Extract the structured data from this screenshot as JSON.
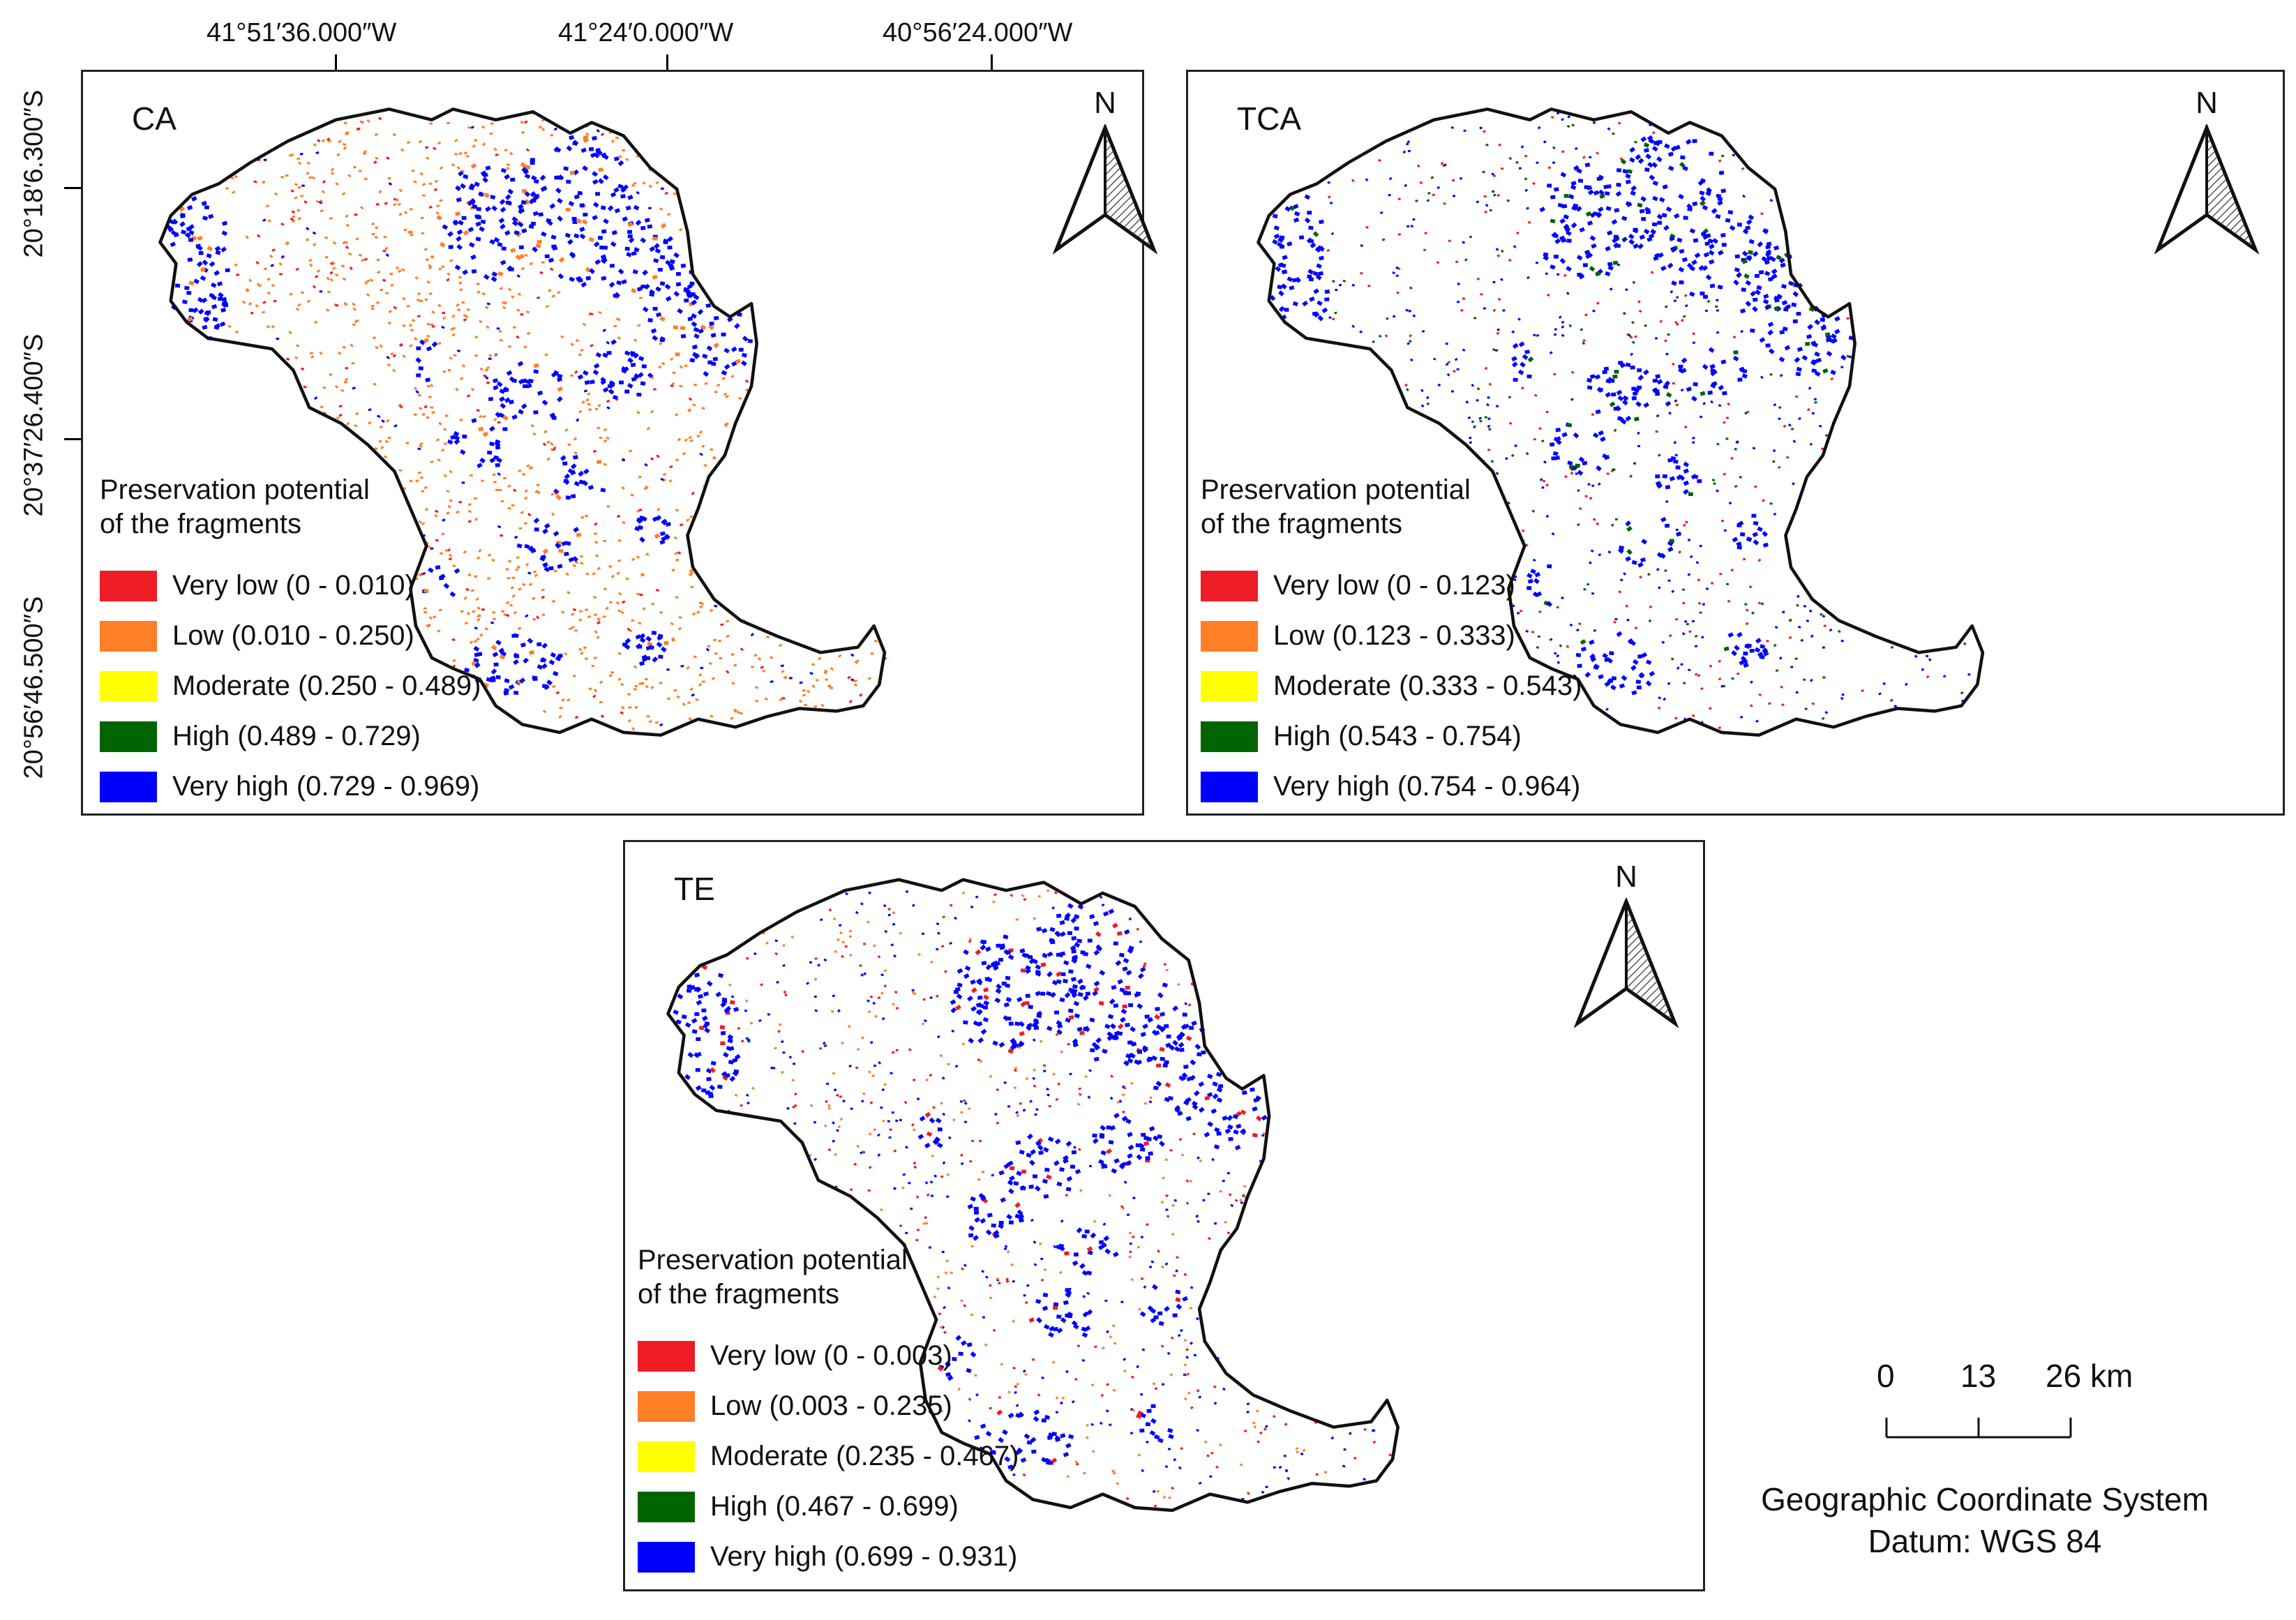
{
  "axes": {
    "longitude_labels": [
      "41°51′36.000″W",
      "41°24′0.000″W",
      "40°56′24.000″W"
    ],
    "latitude_labels": [
      "20°18′6.300″S",
      "20°37′26.400″S",
      "20°56′46.500″S"
    ]
  },
  "north_arrow_label": "N",
  "legend_title_lines": [
    "Preservation potential",
    "of the fragments"
  ],
  "class_colors": {
    "very_low": "#ee1c24",
    "low": "#ff7f27",
    "moderate": "#ffff00",
    "high": "#006400",
    "very_high": "#0000ff"
  },
  "panels": [
    {
      "label": "CA",
      "legend": [
        {
          "name": "Very low",
          "range": "(0 - 0.010)",
          "text": "Very low (0 - 0.010)"
        },
        {
          "name": "Low",
          "range": "(0.010 - 0.250)",
          "text": "Low (0.010 - 0.250)"
        },
        {
          "name": "Moderate",
          "range": "(0.250 - 0.489)",
          "text": "Moderate (0.250 - 0.489)"
        },
        {
          "name": "High",
          "range": "(0.489 - 0.729)",
          "text": "High (0.489 - 0.729)"
        },
        {
          "name": "Very high",
          "range": "(0.729 - 0.969)",
          "text": "Very high (0.729 - 0.969)"
        }
      ]
    },
    {
      "label": "TCA",
      "legend": [
        {
          "name": "Very low",
          "range": "(0 - 0.123)",
          "text": "Very low (0 - 0.123)"
        },
        {
          "name": "Low",
          "range": "(0.123 - 0.333)",
          "text": "Low (0.123 - 0.333)"
        },
        {
          "name": "Moderate",
          "range": "(0.333 - 0.543)",
          "text": "Moderate (0.333 - 0.543)"
        },
        {
          "name": "High",
          "range": "(0.543 - 0.754)",
          "text": "High (0.543 - 0.754)"
        },
        {
          "name": "Very high",
          "range": "(0.754 - 0.964)",
          "text": "Very high (0.754 - 0.964)"
        }
      ]
    },
    {
      "label": "TE",
      "legend": [
        {
          "name": "Very low",
          "range": "(0 - 0.003)",
          "text": "Very low (0 - 0.003)"
        },
        {
          "name": "Low",
          "range": "(0.003 - 0.235)",
          "text": "Low (0.003 - 0.235)"
        },
        {
          "name": "Moderate",
          "range": "(0.235 - 0.467)",
          "text": "Moderate (0.235 - 0.467)"
        },
        {
          "name": "High",
          "range": "(0.467 - 0.699)",
          "text": "High (0.467 - 0.699)"
        },
        {
          "name": "Very high",
          "range": "(0.699 - 0.931)",
          "text": "Very high (0.699 - 0.931)"
        }
      ]
    }
  ],
  "scale_bar": {
    "labels": [
      "0",
      "13",
      "26 km"
    ]
  },
  "coordinate_system": [
    "Geographic Coordinate System",
    "Datum: WGS 84"
  ]
}
